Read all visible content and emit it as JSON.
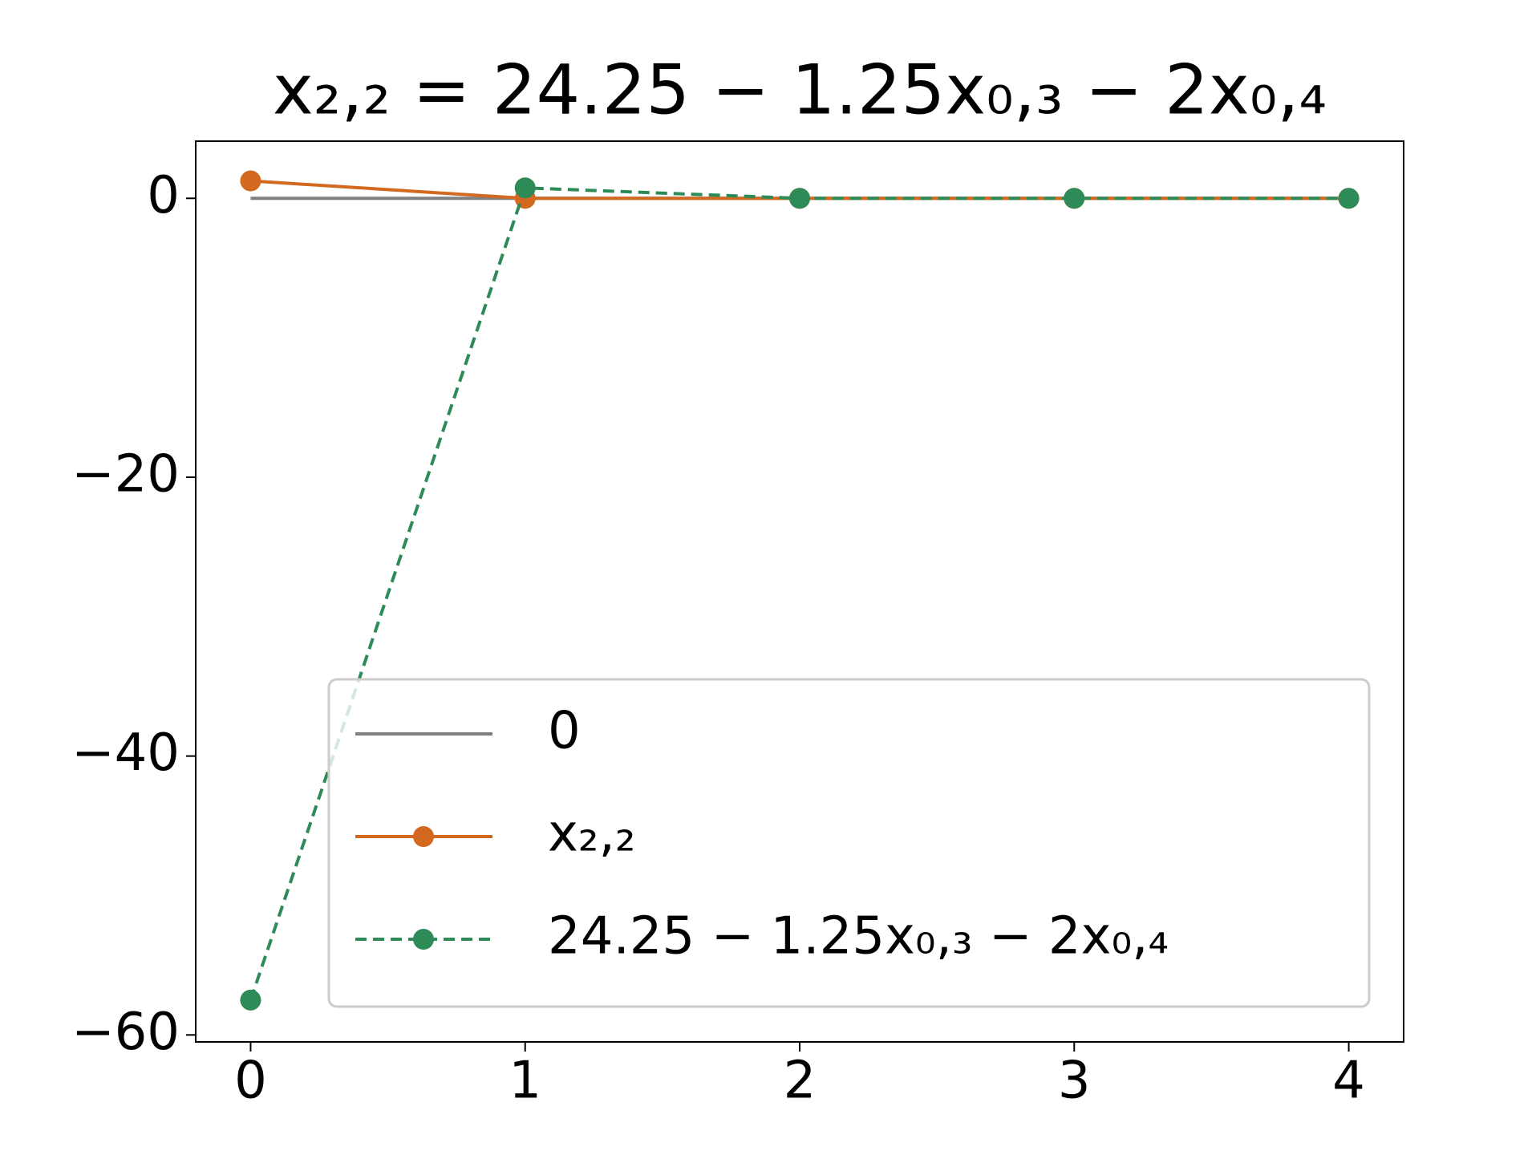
{
  "chart_data": {
    "type": "line",
    "title": "x₂,₂ = 24.25 − 1.25x₀,₃ − 2x₀,₄",
    "x": [
      0,
      1,
      2,
      3,
      4
    ],
    "series": [
      {
        "name": "0",
        "color": "#808080",
        "linestyle": "solid",
        "marker": false,
        "values": [
          0,
          0,
          0,
          0,
          0
        ]
      },
      {
        "name": "x₂,₂",
        "color": "#d2691e",
        "linestyle": "solid",
        "marker": true,
        "values": [
          1.25,
          0,
          0,
          0,
          0
        ]
      },
      {
        "name": "24.25 − 1.25x₀,₃ − 2x₀,₄",
        "color": "#2e8b57",
        "linestyle": "dashed",
        "marker": true,
        "values": [
          -57.5,
          0.75,
          0,
          0,
          0
        ]
      }
    ],
    "xlim": [
      -0.2,
      4.2
    ],
    "ylim": [
      -60.5,
      4.1
    ],
    "xticks": [
      0,
      1,
      2,
      3,
      4
    ],
    "yticks": [
      {
        "value": -60,
        "label": "−60"
      },
      {
        "value": -40,
        "label": "−40"
      },
      {
        "value": -20,
        "label": "−20"
      },
      0
    ],
    "legend": "lower right"
  }
}
